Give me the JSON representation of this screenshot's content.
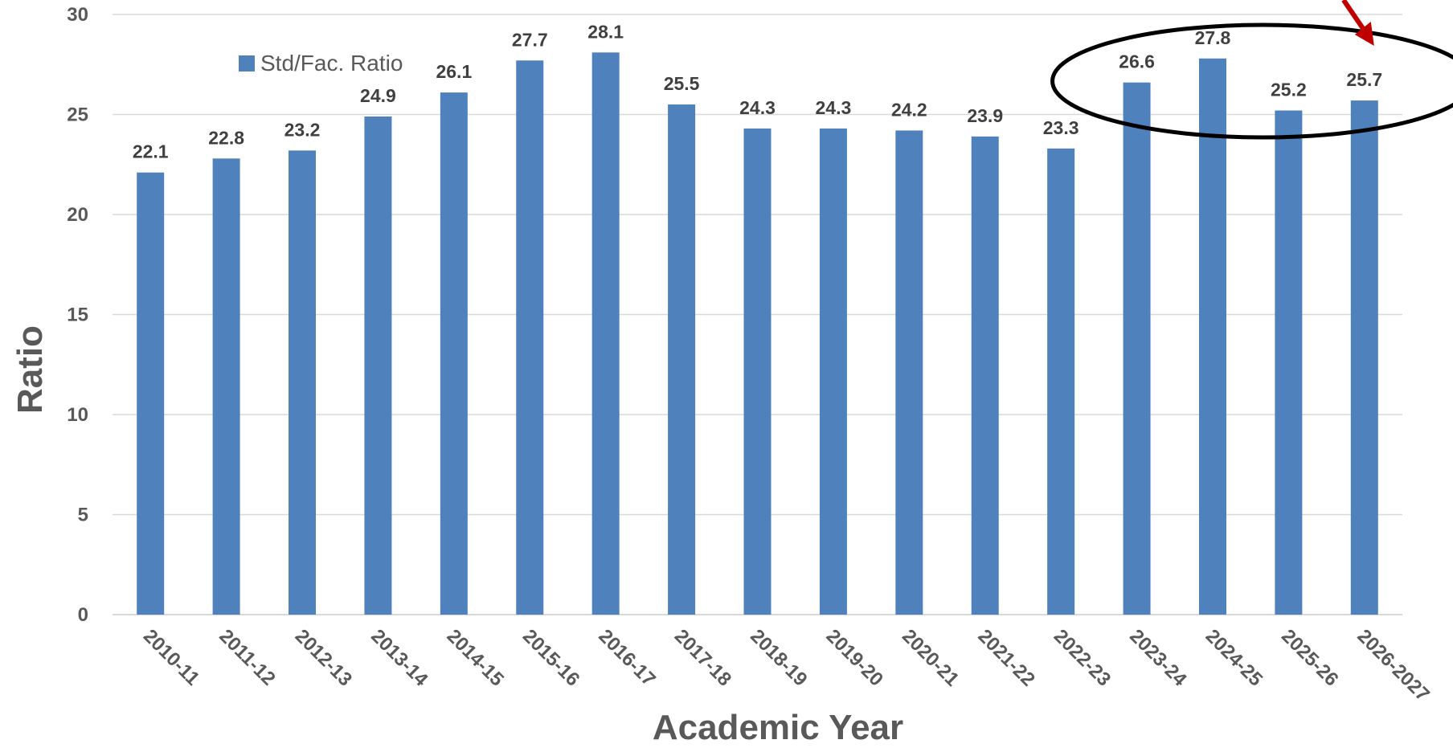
{
  "chart_data": {
    "type": "bar",
    "title": "",
    "xlabel": "Academic Year",
    "ylabel": "Ratio",
    "ylim": [
      0,
      30
    ],
    "yticks": [
      0,
      5,
      10,
      15,
      20,
      25,
      30
    ],
    "grid": true,
    "legend_position": "top-left",
    "categories": [
      "2010-11",
      "2011-12",
      "2012-13",
      "2013-14",
      "2014-15",
      "2015-16",
      "2016-17",
      "2017-18",
      "2018-19",
      "2019-20",
      "2020-21",
      "2021-22",
      "2022-23",
      "2023-24",
      "2024-25",
      "2025-26",
      "2026-2027"
    ],
    "series": [
      {
        "name": "Std/Fac. Ratio",
        "color": "#4f81bd",
        "values": [
          22.1,
          22.8,
          23.2,
          24.9,
          26.1,
          27.7,
          28.1,
          25.5,
          24.3,
          24.3,
          24.2,
          23.9,
          23.3,
          26.6,
          27.8,
          25.2,
          25.7
        ]
      }
    ],
    "annotations": [
      {
        "type": "ellipse",
        "highlights": [
          "2023-24",
          "2024-25",
          "2025-26",
          "2026-2027"
        ],
        "color": "#000000"
      },
      {
        "type": "arrow",
        "points_to": "2026-2027",
        "color": "#c00000"
      }
    ]
  }
}
